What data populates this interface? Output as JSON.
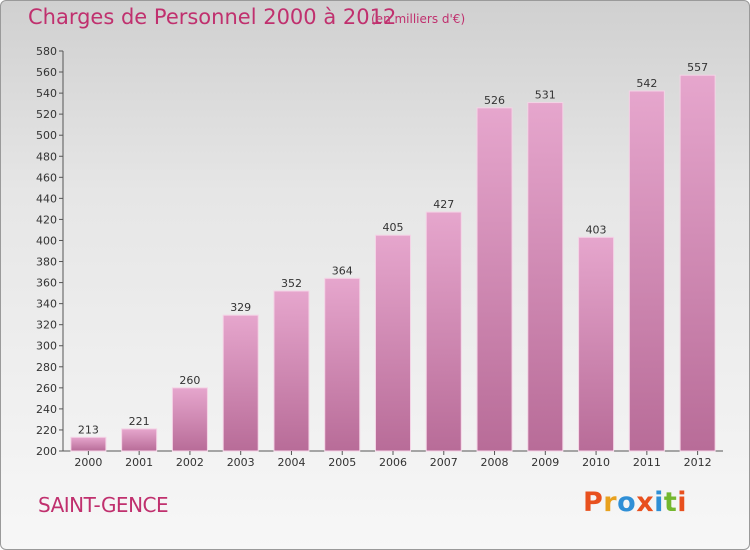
{
  "header": {
    "title": "Charges de Personnel 2000 à 2012",
    "subtitle": "(en milliers d'€)"
  },
  "footer": {
    "place": "SAINT-GENCE",
    "brand": "Proxiti",
    "brand_colors": [
      "#e8501e",
      "#e8a11e",
      "#2f8fd6",
      "#e8501e",
      "#2f8fd6",
      "#74b72e",
      "#e8501e"
    ]
  },
  "colors": {
    "bar_top": "#e6a6cd",
    "bar_bottom": "#b86c98",
    "title": "#c0306e"
  },
  "chart_data": {
    "type": "bar",
    "categories": [
      "2000",
      "2001",
      "2002",
      "2003",
      "2004",
      "2005",
      "2006",
      "2007",
      "2008",
      "2009",
      "2010",
      "2011",
      "2012"
    ],
    "values": [
      213,
      221,
      260,
      329,
      352,
      364,
      405,
      427,
      526,
      531,
      403,
      542,
      557
    ],
    "ylim": [
      200,
      580
    ],
    "ytick_step": 20,
    "grid": false,
    "legend": "none"
  }
}
